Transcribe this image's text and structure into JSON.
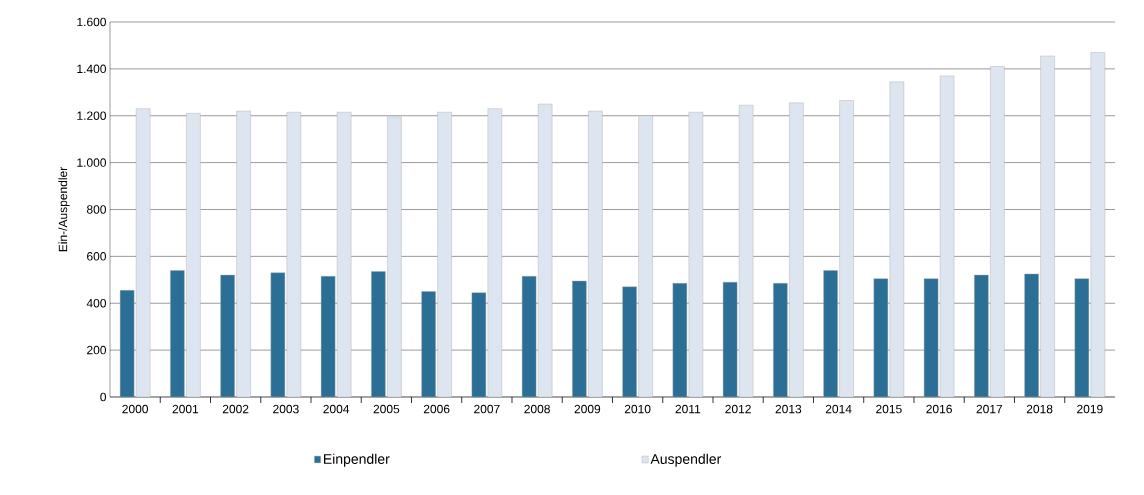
{
  "chart_data": {
    "type": "bar",
    "ylabel": "Ein-/Auspendler",
    "categories": [
      "2000",
      "2001",
      "2002",
      "2003",
      "2004",
      "2005",
      "2006",
      "2007",
      "2008",
      "2009",
      "2010",
      "2011",
      "2012",
      "2013",
      "2014",
      "2015",
      "2016",
      "2017",
      "2018",
      "2019"
    ],
    "series": [
      {
        "name": "Einpendler",
        "color": "#2b6f96",
        "values": [
          455,
          540,
          520,
          530,
          515,
          535,
          450,
          445,
          515,
          495,
          470,
          485,
          490,
          485,
          540,
          505,
          505,
          520,
          525,
          505
        ]
      },
      {
        "name": "Auspendler",
        "color": "#dde6f0",
        "values": [
          1230,
          1210,
          1220,
          1215,
          1215,
          1195,
          1215,
          1230,
          1250,
          1220,
          1200,
          1215,
          1245,
          1255,
          1265,
          1345,
          1370,
          1410,
          1455,
          1470
        ]
      }
    ],
    "ylim": [
      0,
      1600
    ],
    "yticks": [
      {
        "value": 0,
        "label": "0"
      },
      {
        "value": 200,
        "label": "200"
      },
      {
        "value": 400,
        "label": "400"
      },
      {
        "value": 600,
        "label": "600"
      },
      {
        "value": 800,
        "label": "800"
      },
      {
        "value": 1000,
        "label": "1.000"
      },
      {
        "value": 1200,
        "label": "1.200"
      },
      {
        "value": 1400,
        "label": "1.400"
      },
      {
        "value": 1600,
        "label": "1.600"
      }
    ],
    "grid": "y",
    "legend": "bottom"
  }
}
